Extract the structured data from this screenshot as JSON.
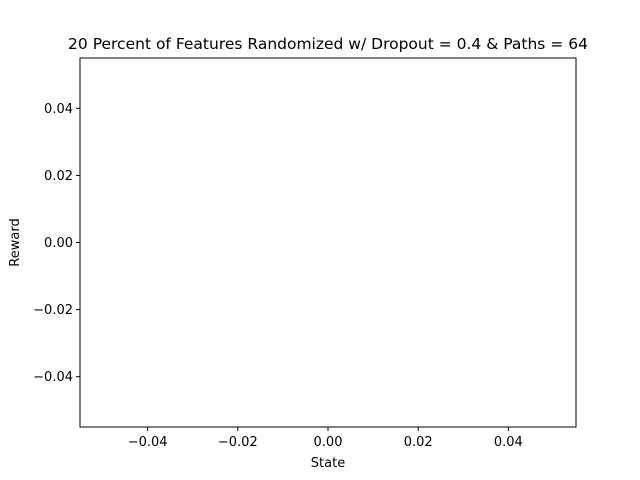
{
  "chart_data": {
    "type": "line",
    "title": "20 Percent of Features Randomized w/ Dropout = 0.4 & Paths = 64",
    "xlabel": "State",
    "ylabel": "Reward",
    "xlim": [
      -0.055,
      0.055
    ],
    "ylim": [
      -0.055,
      0.055
    ],
    "x_ticks": [
      -0.04,
      -0.02,
      0.0,
      0.02,
      0.04
    ],
    "x_tick_labels": [
      "−0.04",
      "−0.02",
      "0.00",
      "0.02",
      "0.04"
    ],
    "y_ticks": [
      -0.04,
      -0.02,
      0.0,
      0.02,
      0.04
    ],
    "y_tick_labels": [
      "−0.04",
      "−0.02",
      "0.00",
      "0.02",
      "0.04"
    ],
    "grid": false,
    "series": []
  }
}
